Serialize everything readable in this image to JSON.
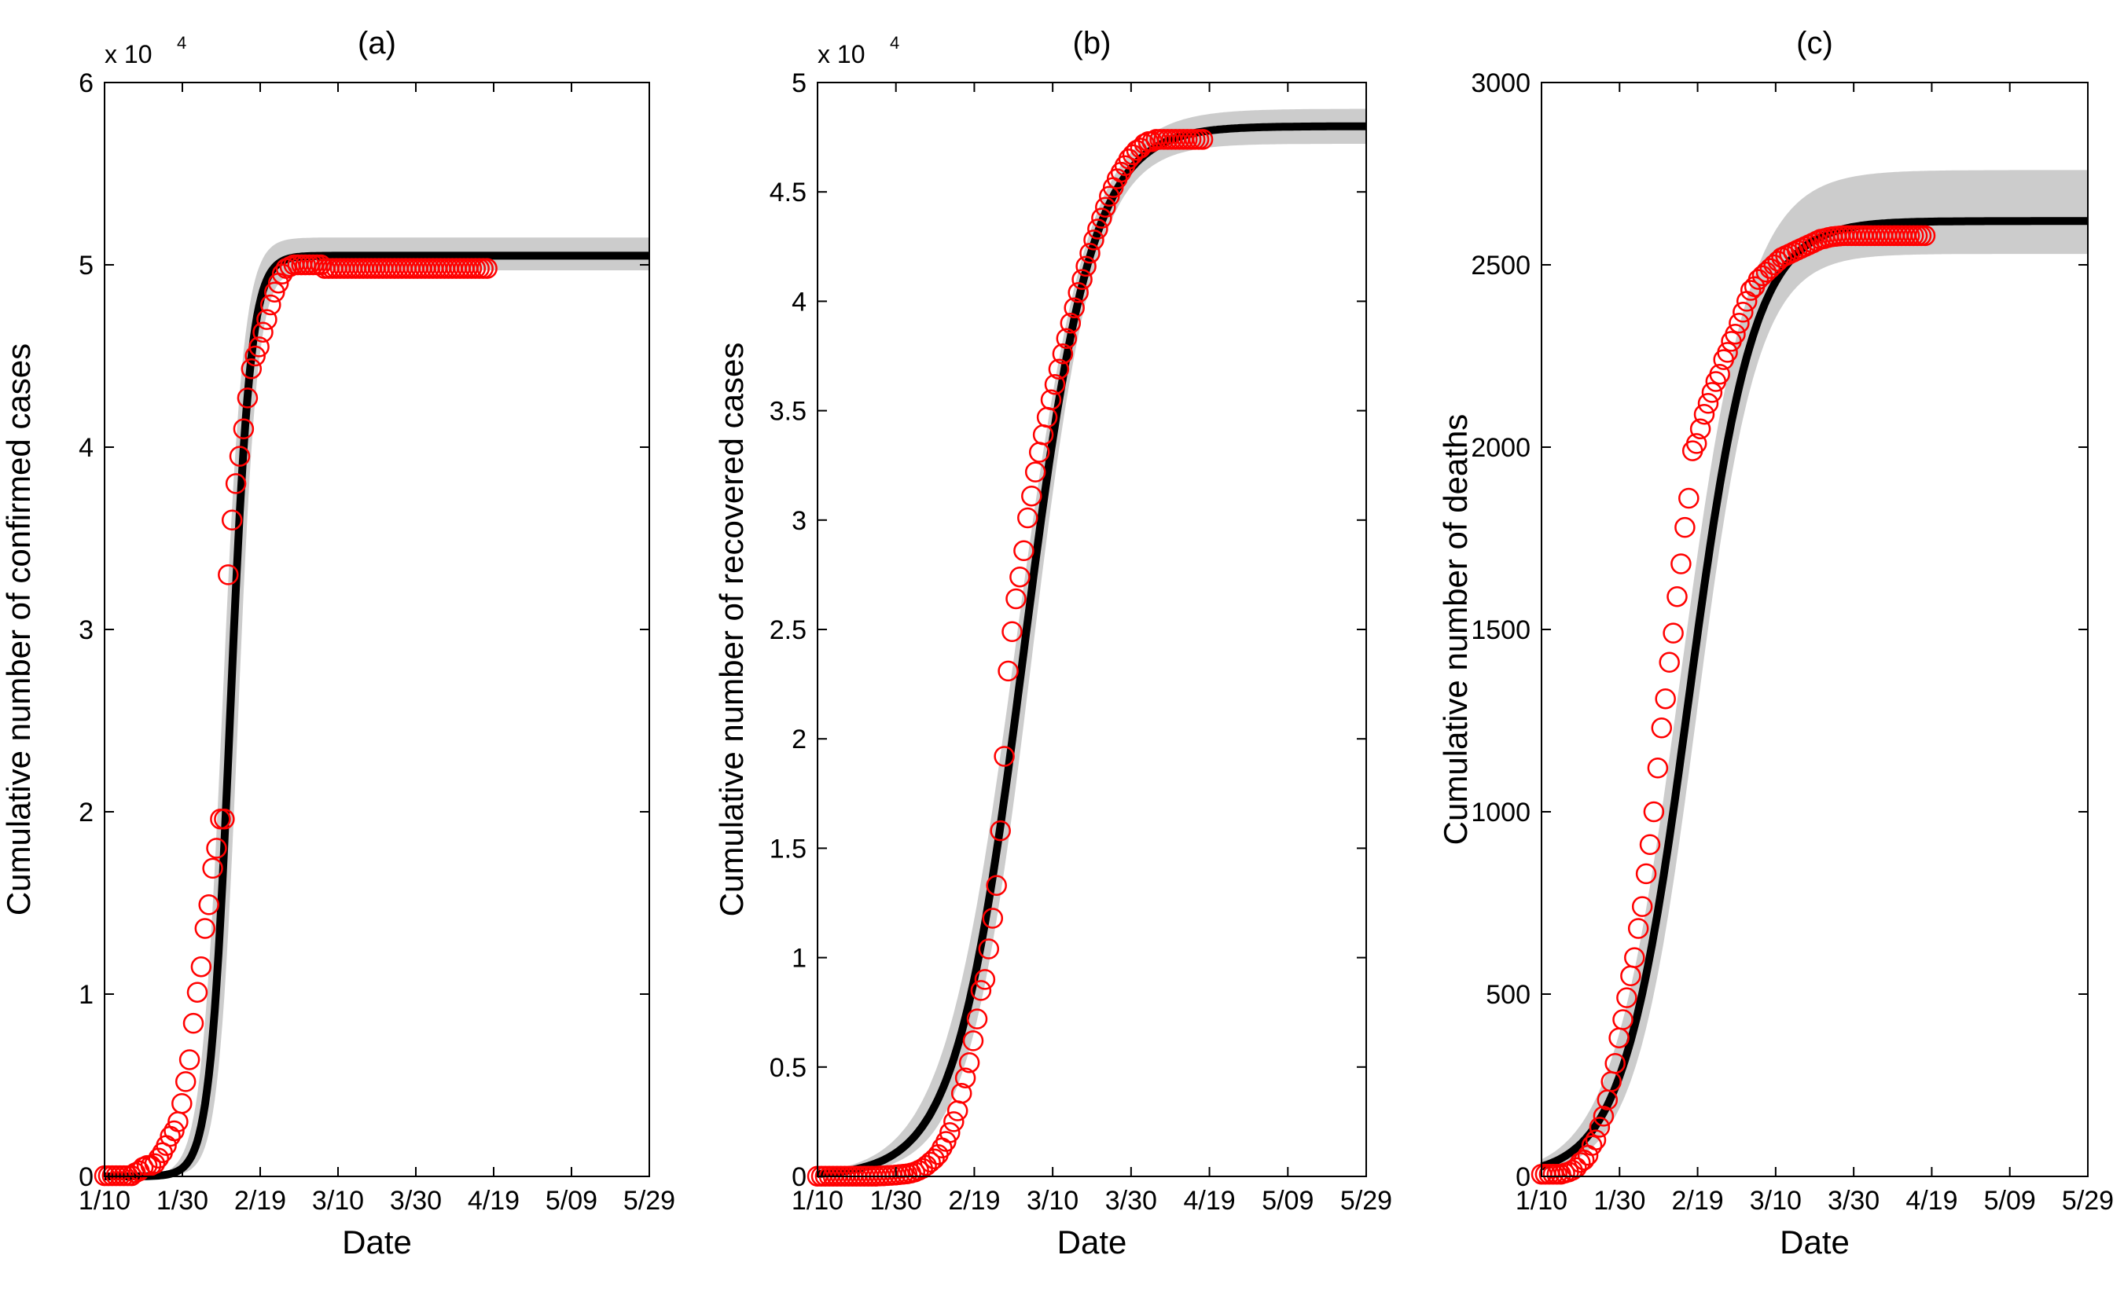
{
  "chart_data": [
    {
      "type": "scatter",
      "title": "(a)",
      "xlabel": "Date",
      "ylabel": "Cumulative number of confirmed cases",
      "exponent_label": "x 10",
      "exponent_power": "4",
      "x_ticks": [
        "1/10",
        "1/30",
        "2/19",
        "3/10",
        "3/30",
        "4/19",
        "5/09",
        "5/29"
      ],
      "xlim": [
        0,
        141
      ],
      "ylim": [
        0,
        6
      ],
      "y_ticks": [
        0,
        1,
        2,
        3,
        4,
        5,
        6
      ],
      "y_tick_labels": [
        "0",
        "1",
        "2",
        "3",
        "4",
        "5",
        "6"
      ],
      "fit": {
        "K": 5.05,
        "r": 0.38,
        "t0": 32.5
      },
      "band": {
        "upper_K": 5.15,
        "lower_K": 4.97,
        "spread": 0.05
      },
      "series": [
        {
          "name": "observed",
          "x": [
            0,
            1,
            2,
            3,
            4,
            5,
            6,
            7,
            8,
            9,
            10,
            11,
            12,
            13,
            14,
            15,
            16,
            17,
            18,
            19,
            20,
            21,
            22,
            23,
            24,
            25,
            26,
            27,
            28,
            29,
            30,
            31,
            32,
            33,
            34,
            35,
            36,
            37,
            38,
            39,
            40,
            41,
            42,
            43,
            44,
            45,
            46,
            47,
            48,
            49,
            50,
            51,
            52,
            53,
            54,
            55,
            56,
            57,
            58,
            59,
            60,
            61,
            62,
            63,
            64,
            65,
            66,
            67,
            68,
            69,
            70,
            71,
            72,
            73,
            74,
            75,
            76,
            77,
            78,
            79,
            80,
            81,
            82,
            83,
            84,
            85,
            86,
            87,
            88,
            89,
            90,
            91,
            92,
            93,
            94,
            95,
            96,
            97,
            98,
            99
          ],
          "values": [
            0.004,
            0.004,
            0.004,
            0.004,
            0.004,
            0.004,
            0.004,
            0.004,
            0.02,
            0.03,
            0.05,
            0.06,
            0.06,
            0.07,
            0.1,
            0.13,
            0.17,
            0.22,
            0.25,
            0.3,
            0.4,
            0.52,
            0.64,
            0.84,
            1.01,
            1.15,
            1.36,
            1.49,
            1.69,
            1.8,
            1.96,
            1.96,
            3.3,
            3.6,
            3.8,
            3.95,
            4.1,
            4.27,
            4.43,
            4.5,
            4.55,
            4.63,
            4.7,
            4.78,
            4.85,
            4.9,
            4.95,
            4.98,
            4.99,
            5.0,
            5.0,
            5.0,
            5.0,
            5.0,
            5.0,
            5.0,
            5.0,
            4.98,
            4.98,
            4.98,
            4.98,
            4.98,
            4.98,
            4.98,
            4.98,
            4.98,
            4.98,
            4.98,
            4.98,
            4.98,
            4.98,
            4.98,
            4.98,
            4.98,
            4.98,
            4.98,
            4.98,
            4.98,
            4.98,
            4.98,
            4.98,
            4.98,
            4.98,
            4.98,
            4.98,
            4.98,
            4.98,
            4.98,
            4.98,
            4.98,
            4.98,
            4.98,
            4.98,
            4.98,
            4.98,
            4.98,
            4.98,
            4.98,
            4.98,
            4.98
          ]
        }
      ]
    },
    {
      "type": "scatter",
      "title": "(b)",
      "xlabel": "Date",
      "ylabel": "Cumulative number of recovered cases",
      "exponent_label": "x 10",
      "exponent_power": "4",
      "x_ticks": [
        "1/10",
        "1/30",
        "2/19",
        "3/10",
        "3/30",
        "4/19",
        "5/09",
        "5/29"
      ],
      "xlim": [
        0,
        141
      ],
      "ylim": [
        0,
        5
      ],
      "y_ticks": [
        0,
        0.5,
        1,
        1.5,
        2,
        2.5,
        3,
        3.5,
        4,
        4.5,
        5
      ],
      "y_tick_labels": [
        "0",
        "0.5",
        "1",
        "1.5",
        "2",
        "2.5",
        "3",
        "3.5",
        "4",
        "4.5",
        "5"
      ],
      "fit": {
        "K": 4.8,
        "r": 0.115,
        "t0": 53
      },
      "band": {
        "upper_K": 4.88,
        "lower_K": 4.72,
        "spread": 0.07
      },
      "series": [
        {
          "name": "observed",
          "x": [
            0,
            1,
            2,
            3,
            4,
            5,
            6,
            7,
            8,
            9,
            10,
            11,
            12,
            13,
            14,
            15,
            16,
            17,
            18,
            19,
            20,
            21,
            22,
            23,
            24,
            25,
            26,
            27,
            28,
            29,
            30,
            31,
            32,
            33,
            34,
            35,
            36,
            37,
            38,
            39,
            40,
            41,
            42,
            43,
            44,
            45,
            46,
            47,
            48,
            49,
            50,
            51,
            52,
            53,
            54,
            55,
            56,
            57,
            58,
            59,
            60,
            61,
            62,
            63,
            64,
            65,
            66,
            67,
            68,
            69,
            70,
            71,
            72,
            73,
            74,
            75,
            76,
            77,
            78,
            79,
            80,
            81,
            82,
            83,
            84,
            85,
            86,
            87,
            88,
            89,
            90,
            91,
            92,
            93,
            94,
            95,
            96,
            97,
            98,
            99
          ],
          "values": [
            0.001,
            0.001,
            0.001,
            0.001,
            0.001,
            0.001,
            0.001,
            0.001,
            0.001,
            0.001,
            0.001,
            0.001,
            0.001,
            0.001,
            0.001,
            0.001,
            0.002,
            0.003,
            0.004,
            0.005,
            0.006,
            0.008,
            0.01,
            0.012,
            0.015,
            0.02,
            0.028,
            0.037,
            0.05,
            0.065,
            0.08,
            0.1,
            0.13,
            0.16,
            0.2,
            0.25,
            0.3,
            0.38,
            0.45,
            0.52,
            0.62,
            0.72,
            0.85,
            0.9,
            1.04,
            1.18,
            1.33,
            1.58,
            1.92,
            2.31,
            2.49,
            2.64,
            2.74,
            2.86,
            3.01,
            3.11,
            3.22,
            3.31,
            3.39,
            3.47,
            3.55,
            3.62,
            3.69,
            3.76,
            3.83,
            3.9,
            3.97,
            4.04,
            4.1,
            4.16,
            4.22,
            4.28,
            4.33,
            4.38,
            4.43,
            4.48,
            4.52,
            4.56,
            4.59,
            4.62,
            4.65,
            4.67,
            4.69,
            4.7,
            4.72,
            4.73,
            4.73,
            4.74,
            4.74,
            4.74,
            4.74,
            4.74,
            4.74,
            4.74,
            4.74,
            4.74,
            4.74,
            4.74,
            4.74,
            4.74
          ]
        }
      ]
    },
    {
      "type": "scatter",
      "title": "(c)",
      "xlabel": "Date",
      "ylabel": "Cumulative number of deaths",
      "exponent_label": "",
      "exponent_power": "",
      "x_ticks": [
        "1/10",
        "1/30",
        "2/19",
        "3/10",
        "3/30",
        "4/19",
        "5/09",
        "5/29"
      ],
      "xlim": [
        0,
        141
      ],
      "ylim": [
        0,
        3000
      ],
      "y_ticks": [
        0,
        500,
        1000,
        1500,
        2000,
        2500,
        3000
      ],
      "y_tick_labels": [
        "0",
        "500",
        "1000",
        "1500",
        "2000",
        "2500",
        "3000"
      ],
      "fit": {
        "K": 2620,
        "r": 0.12,
        "t0": 38
      },
      "band": {
        "upper_K": 2760,
        "lower_K": 2530,
        "spread": 0.06
      },
      "series": [
        {
          "name": "observed",
          "x": [
            0,
            1,
            2,
            3,
            4,
            5,
            6,
            7,
            8,
            9,
            10,
            11,
            12,
            13,
            14,
            15,
            16,
            17,
            18,
            19,
            20,
            21,
            22,
            23,
            24,
            25,
            26,
            27,
            28,
            29,
            30,
            31,
            32,
            33,
            34,
            35,
            36,
            37,
            38,
            39,
            40,
            41,
            42,
            43,
            44,
            45,
            46,
            47,
            48,
            49,
            50,
            51,
            52,
            53,
            54,
            55,
            56,
            57,
            58,
            59,
            60,
            61,
            62,
            63,
            64,
            65,
            66,
            67,
            68,
            69,
            70,
            71,
            72,
            73,
            74,
            75,
            76,
            77,
            78,
            79,
            80,
            81,
            82,
            83,
            84,
            85,
            86,
            87,
            88,
            89,
            90,
            91,
            92,
            93,
            94,
            95,
            96,
            97,
            98,
            99
          ],
          "values": [
            6,
            6,
            6,
            6,
            6,
            6,
            9,
            12,
            17,
            24,
            38,
            45,
            58,
            85,
            100,
            135,
            165,
            210,
            260,
            310,
            380,
            430,
            490,
            550,
            600,
            680,
            740,
            830,
            910,
            1000,
            1120,
            1230,
            1310,
            1410,
            1490,
            1590,
            1680,
            1780,
            1860,
            1990,
            2010,
            2050,
            2090,
            2120,
            2150,
            2180,
            2200,
            2240,
            2260,
            2290,
            2310,
            2340,
            2370,
            2400,
            2430,
            2440,
            2460,
            2470,
            2480,
            2490,
            2500,
            2510,
            2520,
            2525,
            2530,
            2535,
            2540,
            2545,
            2550,
            2555,
            2560,
            2565,
            2570,
            2572,
            2575,
            2577,
            2578,
            2579,
            2580,
            2580,
            2580,
            2580,
            2580,
            2580,
            2580,
            2580,
            2580,
            2580,
            2580,
            2580,
            2580,
            2580,
            2580,
            2580,
            2580,
            2580,
            2580,
            2580,
            2580,
            2580
          ]
        }
      ]
    }
  ],
  "colors": {
    "band": "#cccccc",
    "fit_line": "#000000",
    "markers": "#ff0000",
    "axes": "#000000"
  }
}
